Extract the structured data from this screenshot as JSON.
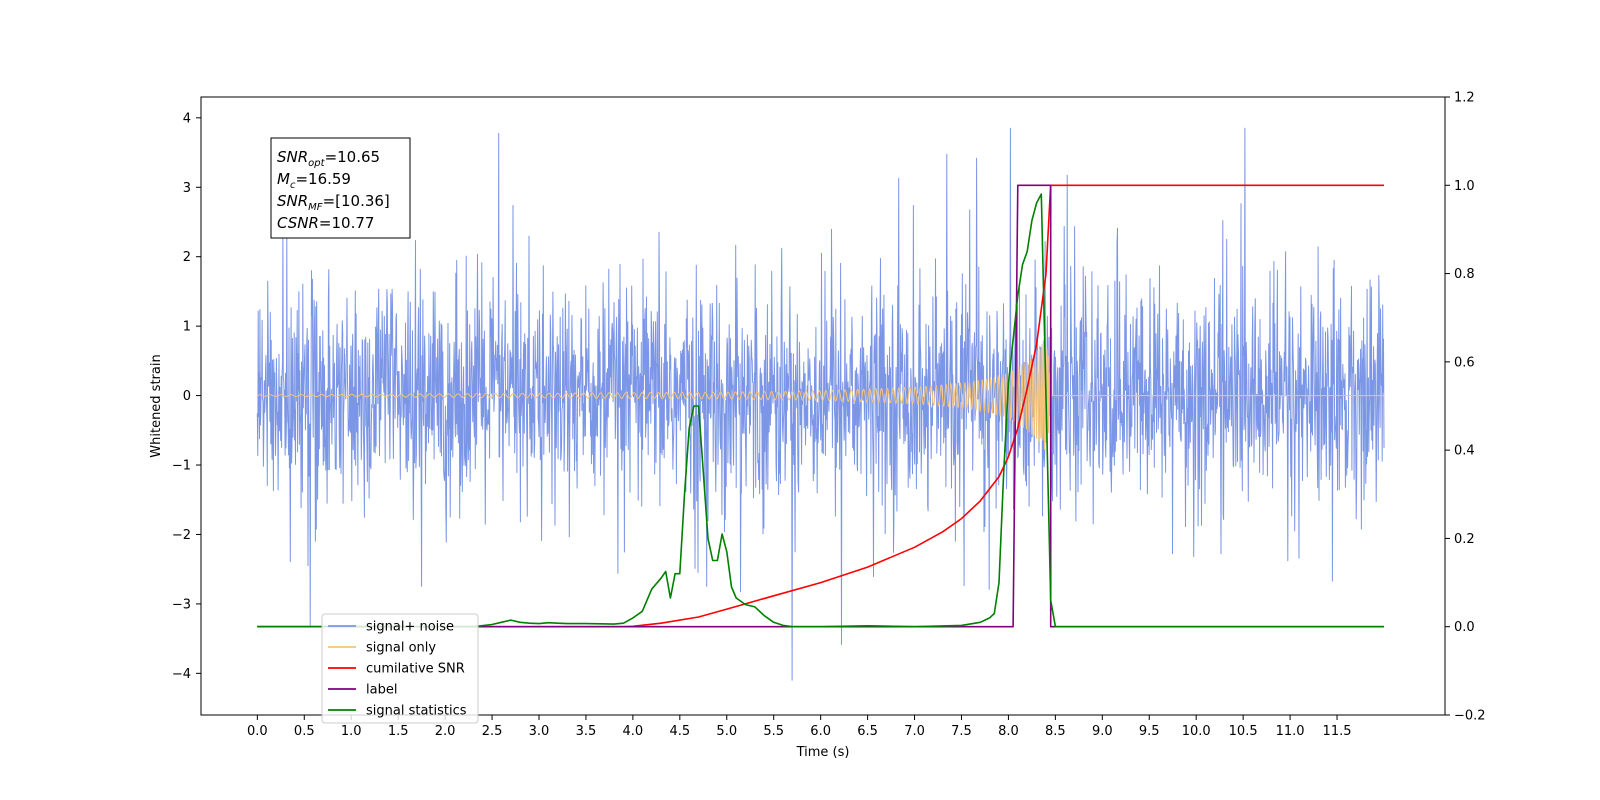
{
  "chart_data": {
    "type": "line",
    "xlabel": "Time (s)",
    "ylabel_left": "Whitened strain",
    "ylabel_right": "",
    "xlim": [
      -0.6,
      12.65
    ],
    "ylim_left": [
      -4.6,
      4.3
    ],
    "ylim_right": [
      -0.2,
      1.2
    ],
    "x_ticks": [
      0.0,
      0.5,
      1.0,
      1.5,
      2.0,
      2.5,
      3.0,
      3.5,
      4.0,
      4.5,
      5.0,
      5.5,
      6.0,
      6.5,
      7.0,
      7.5,
      8.0,
      8.5,
      9.0,
      9.5,
      10.0,
      10.5,
      11.0,
      11.5
    ],
    "x_tick_labels": [
      "0.0",
      "0.5",
      "1.0",
      "1.5",
      "2.0",
      "2.5",
      "3.0",
      "3.5",
      "4.0",
      "4.5",
      "5.0",
      "5.5",
      "6.0",
      "6.5",
      "7.0",
      "7.5",
      "8.0",
      "8.5",
      "9.0",
      "9.5",
      "10.0",
      "10.5",
      "11.0",
      "11.5"
    ],
    "y_ticks_left": [
      4,
      3,
      2,
      1,
      0,
      -1,
      -2,
      -3,
      -4
    ],
    "y_tick_labels_left": [
      "4",
      "3",
      "2",
      "1",
      "0",
      "−1",
      "−2",
      "−3",
      "−4"
    ],
    "y_ticks_right": [
      1.2,
      1.0,
      0.8,
      0.6,
      0.4,
      0.2,
      0.0,
      -0.2
    ],
    "y_tick_labels_right": [
      "1.2",
      "1.0",
      "0.8",
      "0.6",
      "0.4",
      "0.2",
      "0.0",
      "−0.2"
    ],
    "grid": false,
    "legend_position": "lower-left",
    "annotation": {
      "lines": [
        {
          "base": "SNR",
          "sub": "opt",
          "value": "=10.65"
        },
        {
          "base": "M",
          "sub": "c",
          "value": "=16.59"
        },
        {
          "base": "SNR",
          "sub": "MF",
          "value": "=[10.36]"
        },
        {
          "base": "CSNR",
          "sub": "",
          "value": "=10.77"
        }
      ]
    },
    "series": [
      {
        "name": "signal+ noise",
        "axis": "left",
        "color": "#7b96e6",
        "kind": "noise",
        "x_range": [
          0.0,
          12.0
        ],
        "typical_amplitude": 1.8,
        "peak_range": [
          -4.1,
          3.85
        ]
      },
      {
        "name": "signal only",
        "axis": "left",
        "color": "#f5c47a",
        "kind": "chirp",
        "x_range": [
          0.0,
          12.0
        ],
        "envelope": {
          "x": [
            0.0,
            5.0,
            6.0,
            7.0,
            7.5,
            7.8,
            8.0,
            8.1,
            8.2,
            8.3,
            8.35,
            8.4,
            8.43,
            8.45
          ],
          "amp": [
            0.01,
            0.05,
            0.07,
            0.12,
            0.18,
            0.25,
            0.33,
            0.4,
            0.5,
            0.62,
            0.72,
            0.85,
            0.6,
            0.0
          ]
        }
      },
      {
        "name": "cumilative SNR",
        "axis": "right",
        "color": "#ff0000",
        "x": [
          0.0,
          3.9,
          4.0,
          4.3,
          4.7,
          5.0,
          5.5,
          6.0,
          6.5,
          7.0,
          7.3,
          7.5,
          7.7,
          7.9,
          8.0,
          8.1,
          8.2,
          8.3,
          8.4,
          8.44,
          8.45,
          12.0
        ],
        "y": [
          0.0,
          0.0,
          0.001,
          0.008,
          0.022,
          0.04,
          0.07,
          0.1,
          0.135,
          0.18,
          0.215,
          0.245,
          0.285,
          0.34,
          0.385,
          0.45,
          0.54,
          0.64,
          0.8,
          0.96,
          1.0,
          1.0
        ]
      },
      {
        "name": "label",
        "axis": "right",
        "color": "#800080",
        "x": [
          0.0,
          8.05,
          8.1,
          8.45,
          8.45,
          8.5,
          12.0
        ],
        "y": [
          0.0,
          0.0,
          1.0,
          1.0,
          0.0,
          0.0,
          0.0
        ]
      },
      {
        "name": "signal statistics",
        "axis": "right",
        "color": "#008000",
        "x": [
          0.0,
          2.3,
          2.5,
          2.6,
          2.7,
          2.8,
          2.9,
          3.0,
          3.1,
          3.2,
          3.3,
          3.5,
          3.8,
          3.9,
          4.0,
          4.1,
          4.2,
          4.3,
          4.35,
          4.4,
          4.45,
          4.5,
          4.55,
          4.6,
          4.65,
          4.7,
          4.75,
          4.8,
          4.85,
          4.9,
          4.95,
          5.0,
          5.05,
          5.1,
          5.2,
          5.3,
          5.4,
          5.5,
          5.6,
          5.7,
          6.0,
          6.5,
          7.0,
          7.5,
          7.7,
          7.8,
          7.85,
          7.9,
          7.95,
          8.0,
          8.1,
          8.15,
          8.2,
          8.25,
          8.3,
          8.35,
          8.4,
          8.45,
          8.5,
          12.0
        ],
        "y": [
          0.0,
          0.0,
          0.005,
          0.01,
          0.015,
          0.01,
          0.008,
          0.007,
          0.009,
          0.008,
          0.007,
          0.007,
          0.006,
          0.008,
          0.02,
          0.035,
          0.085,
          0.11,
          0.125,
          0.065,
          0.12,
          0.12,
          0.3,
          0.45,
          0.5,
          0.5,
          0.35,
          0.2,
          0.15,
          0.15,
          0.21,
          0.17,
          0.09,
          0.065,
          0.05,
          0.045,
          0.025,
          0.01,
          0.003,
          0.0,
          0.0,
          0.002,
          0.0,
          0.003,
          0.01,
          0.02,
          0.03,
          0.1,
          0.35,
          0.55,
          0.75,
          0.82,
          0.85,
          0.92,
          0.96,
          0.98,
          0.52,
          0.06,
          0.0,
          0.0
        ]
      }
    ],
    "legend": [
      {
        "label": "signal+ noise",
        "color": "#7b96e6"
      },
      {
        "label": "signal only",
        "color": "#f5c47a"
      },
      {
        "label": "cumilative SNR",
        "color": "#ff0000"
      },
      {
        "label": "label",
        "color": "#800080"
      },
      {
        "label": "signal statistics",
        "color": "#008000"
      }
    ]
  }
}
